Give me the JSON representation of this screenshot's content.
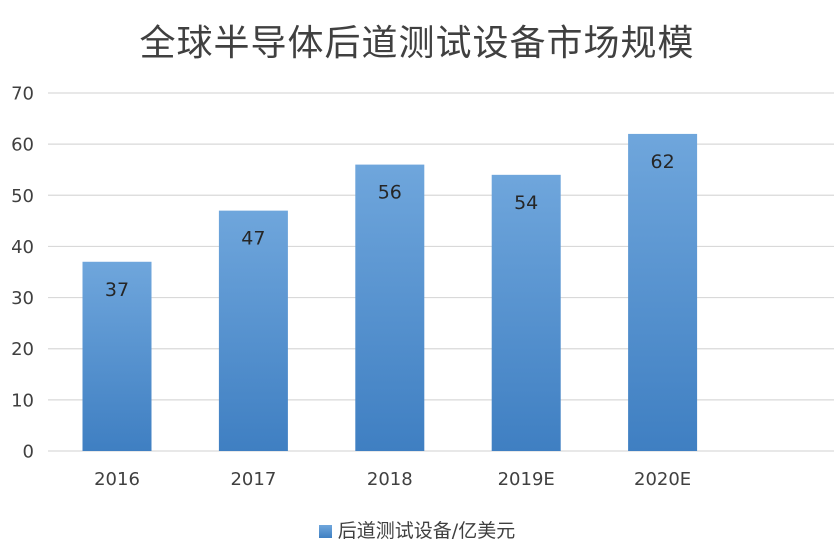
{
  "chart_data": {
    "type": "bar",
    "title": "全球半导体后道测试设备市场规模",
    "categories": [
      "2016",
      "2017",
      "2018",
      "2019E",
      "2020E"
    ],
    "series": [
      {
        "name": "后道测试设备/亿美元",
        "values": [
          37,
          47,
          56,
          54,
          62
        ]
      }
    ],
    "ylim": [
      0,
      70
    ],
    "yticks": [
      0,
      10,
      20,
      30,
      40,
      50,
      60,
      70
    ],
    "grid": true,
    "legend": "bottom",
    "bar_color": "#5b9bd5",
    "grid_color": "#d9d9d9"
  }
}
